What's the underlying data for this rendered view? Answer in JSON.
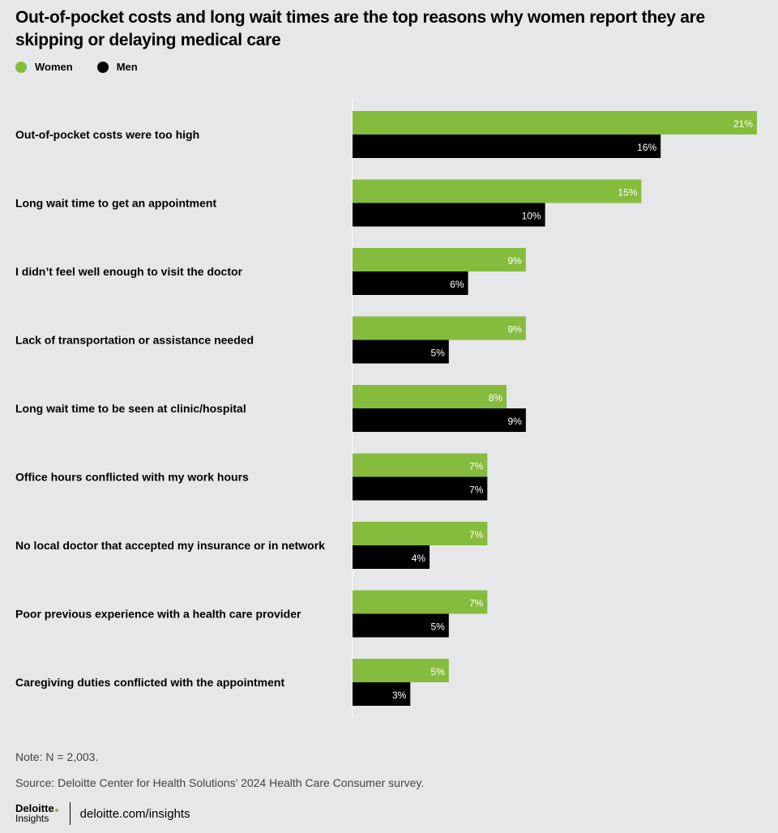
{
  "title": "Out-of-pocket costs and long wait times are the top reasons why women report they are skipping or delaying medical care",
  "legend": [
    {
      "label": "Women",
      "color": "#86bc3e"
    },
    {
      "label": "Men",
      "color": "#000000"
    }
  ],
  "chart_data": {
    "type": "bar",
    "orientation": "horizontal",
    "title": "Out-of-pocket costs and long wait times are the top reasons why women report they are skipping or delaying medical care",
    "categories": [
      "Out-of-pocket costs were too high",
      "Long wait time to get an appointment",
      "I didn’t feel well enough to visit the doctor",
      "Lack of transportation or assistance needed",
      "Long wait time to be seen at clinic/hospital",
      "Office hours conflicted with my work hours",
      "No local doctor that accepted my insurance or in network",
      "Poor previous experience with a health care provider",
      "Caregiving duties conflicted with the appointment"
    ],
    "series": [
      {
        "name": "Women",
        "color": "#86bc3e",
        "values": [
          21,
          15,
          9,
          9,
          8,
          7,
          7,
          7,
          5
        ]
      },
      {
        "name": "Men",
        "color": "#000000",
        "values": [
          16,
          10,
          6,
          5,
          9,
          7,
          4,
          5,
          3
        ]
      }
    ],
    "value_suffix": "%",
    "xlim": [
      0,
      21
    ],
    "xlabel": "",
    "ylabel": ""
  },
  "note": "Note: N = 2,003.",
  "source": "Source: Deloitte Center for Health Solutions’ 2024 Health Care Consumer survey.",
  "footer": {
    "brand": "Deloitte",
    "brand_sub": "Insights",
    "url": "deloitte.com/insights"
  }
}
